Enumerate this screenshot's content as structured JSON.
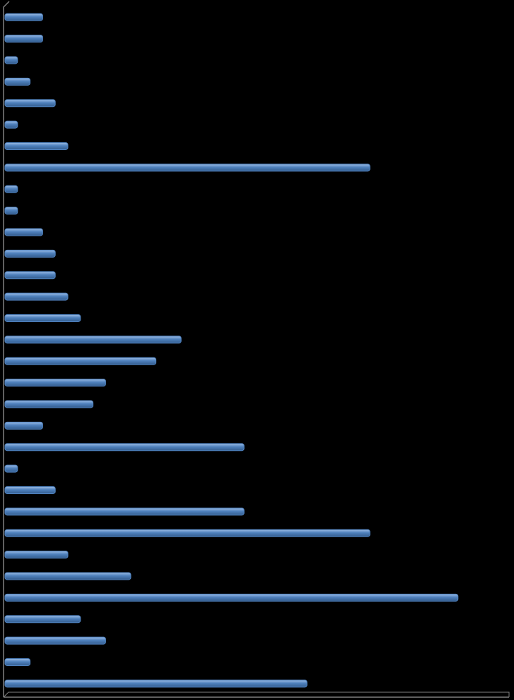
{
  "chart_data": {
    "type": "hbar",
    "color": "#4f81bd",
    "values": [
      3,
      3,
      1,
      2,
      4,
      1,
      5,
      29,
      1,
      1,
      3,
      4,
      4,
      5,
      6,
      14,
      12,
      8,
      7,
      3,
      19,
      1,
      4,
      19,
      29,
      5,
      10,
      36,
      6,
      8,
      2,
      24
    ],
    "xlim": [
      0,
      40
    ]
  }
}
